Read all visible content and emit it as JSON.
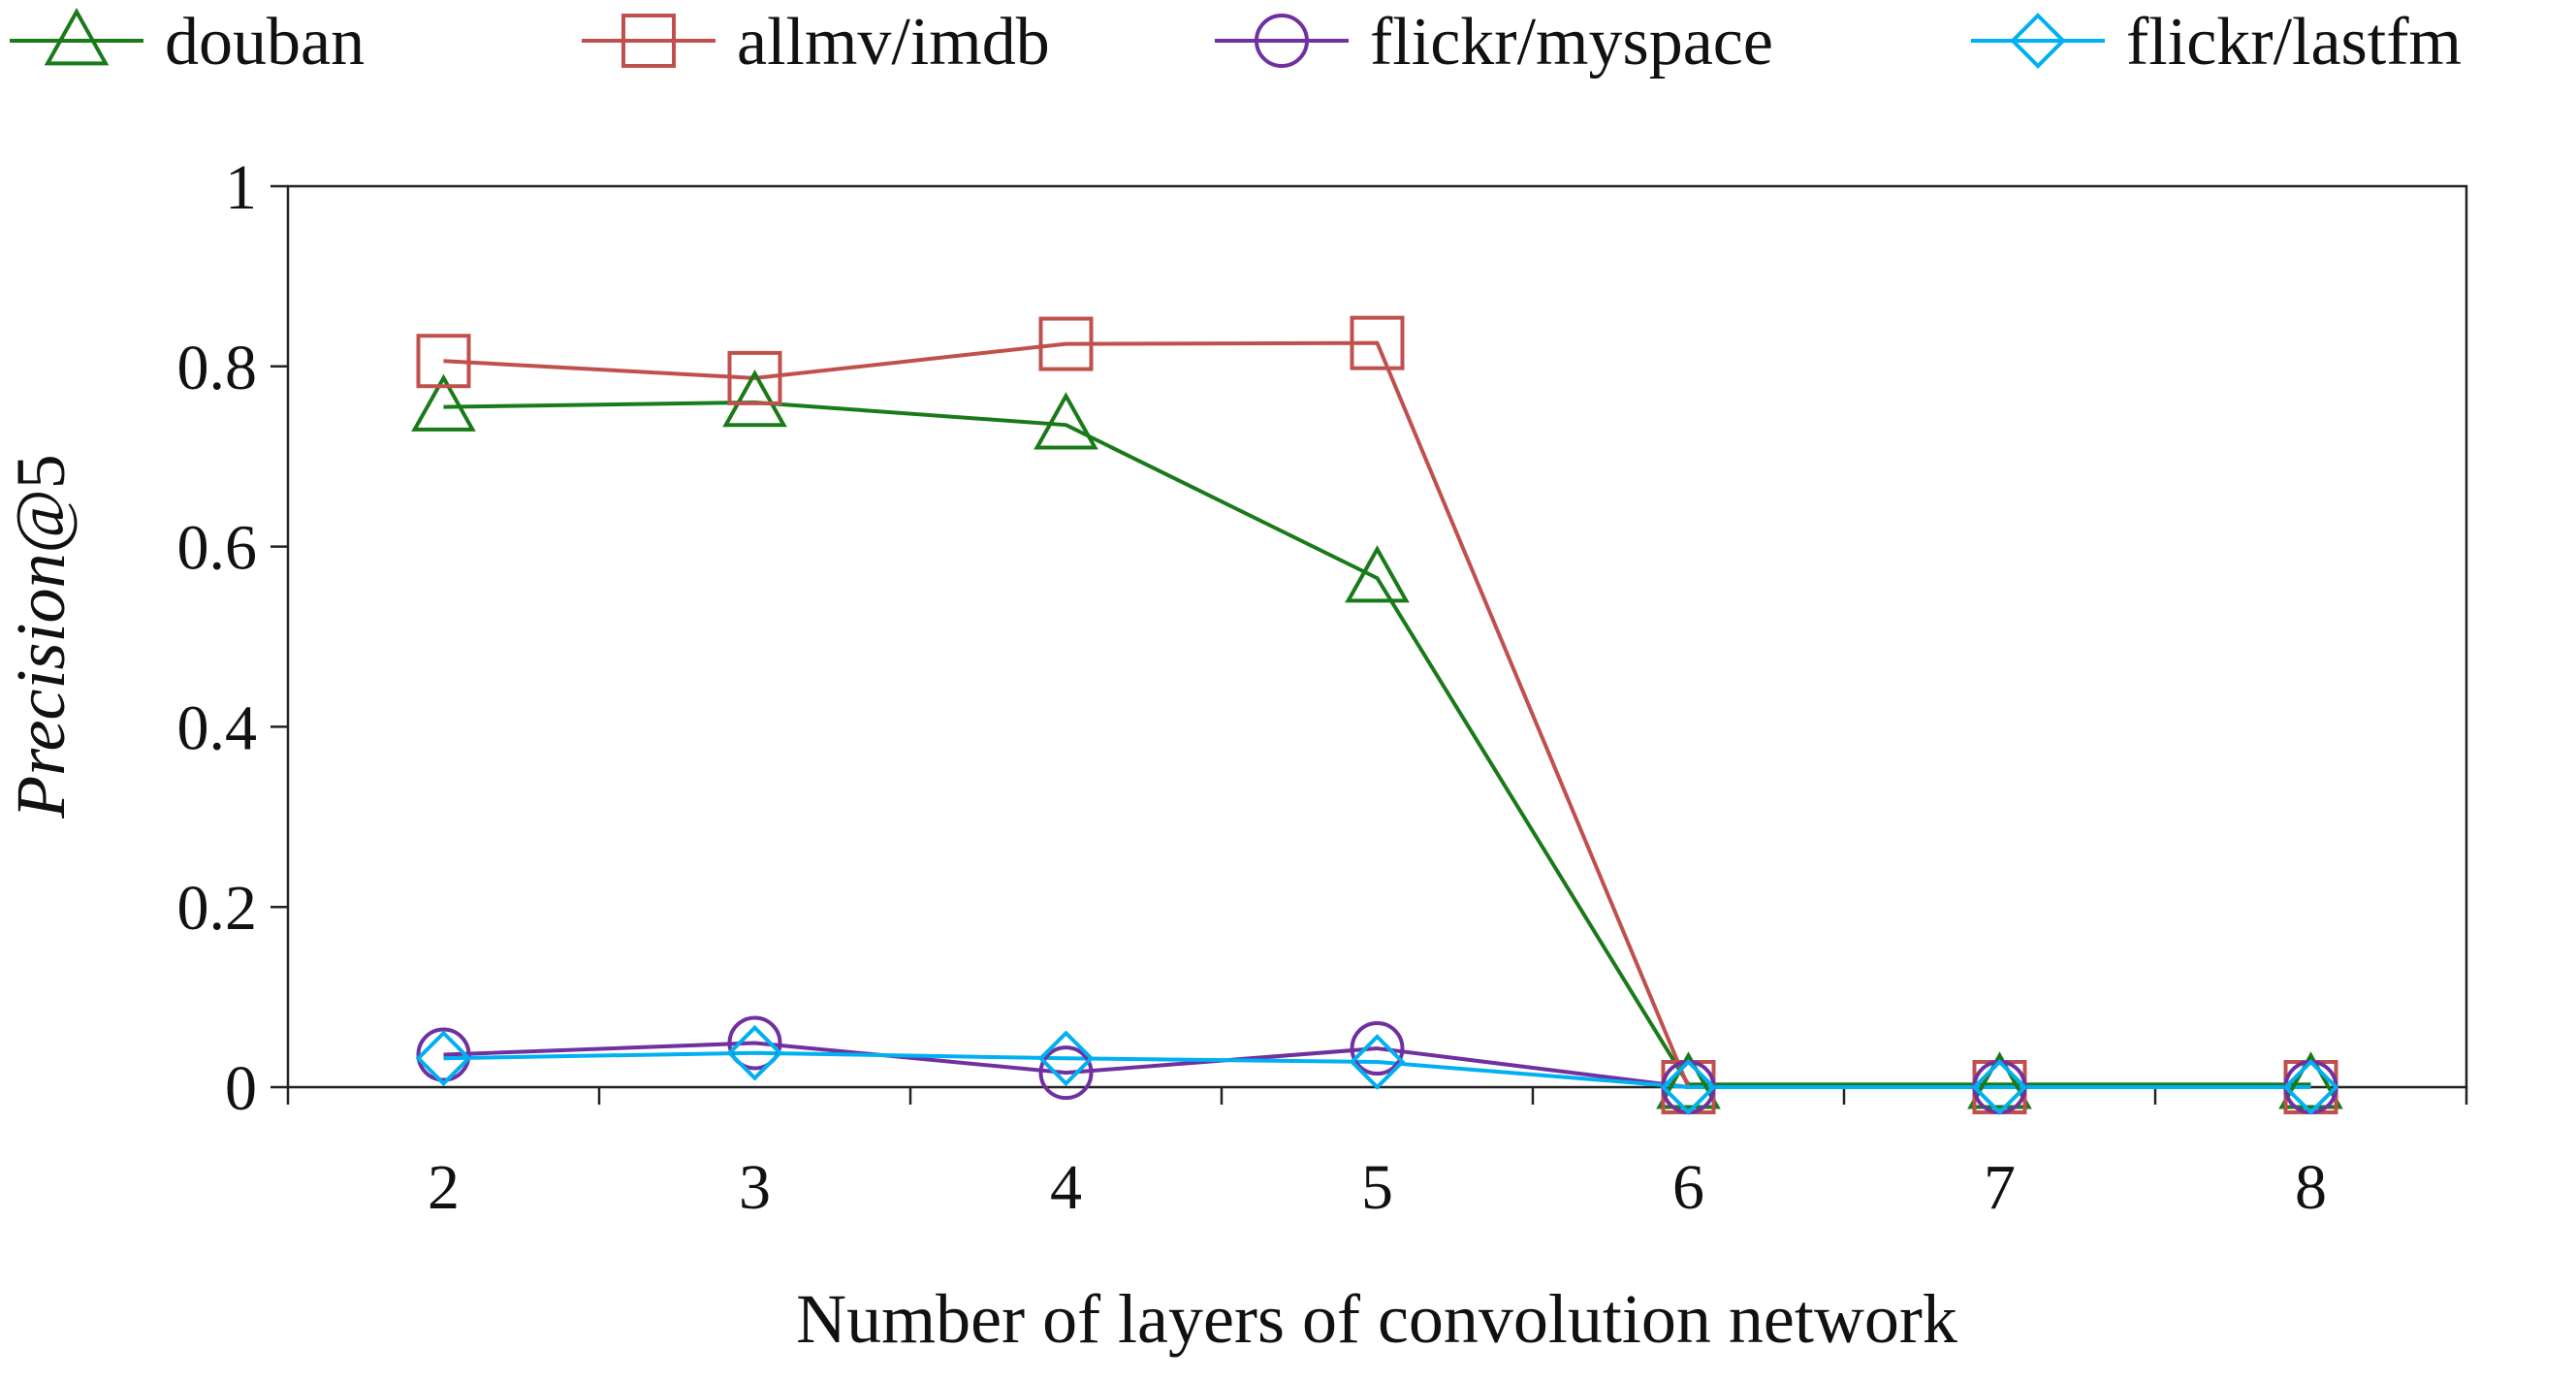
{
  "chart_data": {
    "type": "line",
    "title": "",
    "xlabel": "Number of layers of convolution network",
    "ylabel_italic": "Precision",
    "ylabel_suffix": "@5",
    "x": [
      2,
      3,
      4,
      5,
      6,
      7,
      8
    ],
    "xlim": [
      1.5,
      8.5
    ],
    "ylim": [
      0,
      1
    ],
    "yticks": [
      0,
      0.2,
      0.4,
      0.6,
      0.8,
      1
    ],
    "ytick_labels": [
      "0",
      "0.2",
      "0.4",
      "0.6",
      "0.8",
      "1"
    ],
    "xtick_labels": [
      "2",
      "3",
      "4",
      "5",
      "6",
      "7",
      "8"
    ],
    "grid": false,
    "legend_position": "top",
    "series": [
      {
        "name": "douban",
        "color": "#1a7a1a",
        "marker": "triangle",
        "values": [
          0.755,
          0.76,
          0.735,
          0.565,
          0.003,
          0.003,
          0.003
        ]
      },
      {
        "name": "allmv/imdb",
        "color": "#c0504d",
        "marker": "square",
        "values": [
          0.806,
          0.787,
          0.825,
          0.826,
          0.0,
          0.0,
          0.0
        ]
      },
      {
        "name": "flickr/myspace",
        "color": "#7030a0",
        "marker": "circle",
        "values": [
          0.036,
          0.049,
          0.016,
          0.043,
          0.0,
          0.0,
          0.0
        ]
      },
      {
        "name": "flickr/lastfm",
        "color": "#00b0f0",
        "marker": "diamond",
        "values": [
          0.032,
          0.038,
          0.032,
          0.028,
          0.0,
          0.0,
          0.0
        ]
      }
    ]
  }
}
